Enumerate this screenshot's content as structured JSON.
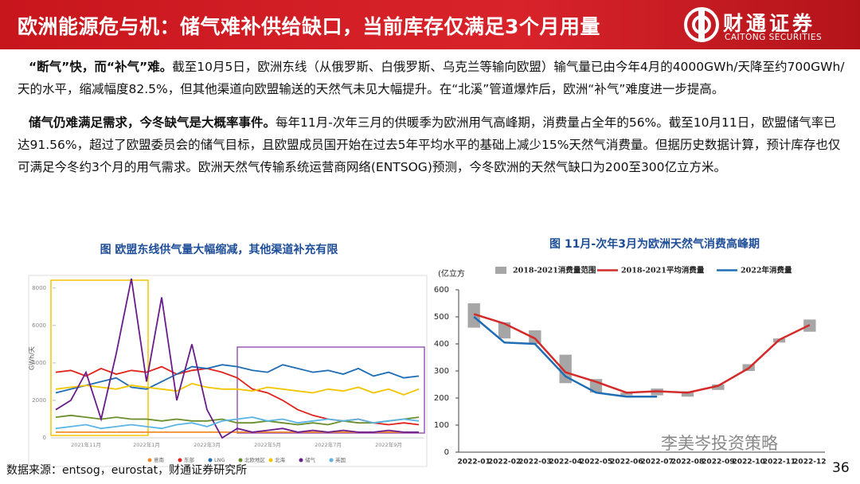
{
  "header": {
    "title": "欧洲能源危与机：储气难补供给缺口，当前库存仅满足3个月用量",
    "logo_cn": "财通证券",
    "logo_en": "CAITONG SECURITIES"
  },
  "paragraphs": [
    {
      "lead": "“断气”快，而“补气”难。",
      "text": "截至10月5日，欧洲东线（从俄罗斯、白俄罗斯、乌克兰等输向欧盟）输气量已由今年4月的4000GWh/天降至约700GWh/天的水平，缩减幅度82.5%，但其他渠道向欧盟输送的天然气未见大幅提升。在“北溪”管道爆炸后，欧洲“补气”难度进一步提高。"
    },
    {
      "lead": "储气仍难满足需求，今冬缺气是大概率事件。",
      "text": "每年11月-次年三月的供暖季为欧洲用气高峰期，消费量占全年的56%。截至10月11日，欧盟储气率已达91.56%，超过了欧盟委员会的储气目标，且欧盟成员国开始在过去5年平均水平的基础上减少15%天然气消费量。但据历史数据计算，预计库存也仅可满足今冬约3个月的用气需求。欧洲天然气传输系统运营商网络(ENTSOG)预测，今冬欧洲的天然气缺口为200至300亿立方米。"
    }
  ],
  "chart_data": [
    {
      "type": "line",
      "title": "图 欧盟东线供气量大幅缩减，其他渠道补充有限",
      "ylabel": "GWh/天",
      "categories": [
        null,
        null,
        "2021年11月",
        null,
        null,
        null,
        "2022年1月",
        null,
        null,
        null,
        "2022年3月",
        null,
        null,
        null,
        "2022年5月",
        null,
        null,
        null,
        "2022年7月",
        null,
        null,
        null,
        "2022年9月",
        null,
        null
      ],
      "ylim": [
        0,
        8500
      ],
      "yticks": [
        0,
        2000,
        4000,
        6000,
        8000
      ],
      "series": [
        {
          "name": "意南",
          "color": "#f28c28",
          "values": [
            300,
            300,
            300,
            300,
            300,
            300,
            300,
            300,
            300,
            300,
            300,
            300,
            300,
            300,
            300,
            300,
            300,
            300,
            300,
            300,
            300,
            300,
            300,
            300,
            300
          ]
        },
        {
          "name": "东部",
          "color": "#e0241b",
          "values": [
            3500,
            3600,
            3300,
            3700,
            3400,
            3600,
            3500,
            3800,
            3400,
            3600,
            3700,
            3500,
            3200,
            2600,
            2400,
            2000,
            1500,
            1200,
            1000,
            900,
            1000,
            800,
            700,
            800,
            700
          ]
        },
        {
          "name": "LNG",
          "color": "#1f6db5",
          "values": [
            2400,
            2600,
            2800,
            3000,
            3200,
            2700,
            2600,
            3000,
            3400,
            3800,
            3700,
            3900,
            3800,
            3600,
            3500,
            3900,
            3700,
            3500,
            3600,
            3400,
            3700,
            3300,
            3500,
            3200,
            3300
          ]
        },
        {
          "name": "北欧地区",
          "color": "#6a8f2a",
          "values": [
            1100,
            1200,
            1100,
            1000,
            1100,
            1000,
            1000,
            900,
            1000,
            900,
            900,
            1000,
            800,
            800,
            900,
            800,
            700,
            800,
            700,
            900,
            800,
            800,
            900,
            1000,
            1100
          ]
        },
        {
          "name": "北海",
          "color": "#f2c500",
          "values": [
            2600,
            2700,
            2800,
            2700,
            2600,
            2800,
            2700,
            2600,
            2500,
            2900,
            2700,
            2600,
            2600,
            2500,
            2700,
            2600,
            2500,
            2400,
            2600,
            2500,
            2700,
            2400,
            2600,
            2300,
            2600
          ]
        },
        {
          "name": "储气",
          "color": "#6a1b8a",
          "values": [
            1500,
            2000,
            3500,
            1000,
            4500,
            8500,
            3000,
            7500,
            2000,
            5000,
            1500,
            0,
            500,
            300,
            400,
            500,
            300,
            400,
            300,
            400,
            300,
            300,
            400,
            300,
            300
          ]
        },
        {
          "name": "英国",
          "color": "#5ab4e6",
          "values": [
            500,
            600,
            700,
            500,
            600,
            700,
            600,
            500,
            700,
            800,
            600,
            900,
            1000,
            1100,
            900,
            1000,
            800,
            900,
            1000,
            900,
            1000,
            800,
            900,
            1000,
            900
          ]
        }
      ]
    },
    {
      "type": "line",
      "title": "图 11月-次年3月为欧洲天然气消费高峰期",
      "ylabel": "(亿立方",
      "categories": [
        "2022-01",
        "2022-02",
        "2022-03",
        "2022-04",
        "2022-05",
        "2022-06",
        "2022-07",
        "2022-08",
        "2022-09",
        "2022-10",
        "2022-11",
        "2022-12"
      ],
      "ylim": [
        0,
        600
      ],
      "yticks": [
        0,
        100,
        200,
        300,
        400,
        500,
        600
      ],
      "series": [
        {
          "name": "2018-2021消费量范围",
          "color": "#a6a6a6",
          "type": "range",
          "low": [
            460,
            420,
            400,
            255,
            220,
            210,
            210,
            205,
            230,
            300,
            405,
            445
          ],
          "high": [
            550,
            480,
            450,
            360,
            270,
            220,
            235,
            225,
            250,
            325,
            420,
            490
          ]
        },
        {
          "name": "2018-2021平均消费量",
          "color": "#d42a2a",
          "values": [
            510,
            475,
            420,
            295,
            260,
            220,
            225,
            220,
            245,
            310,
            415,
            470
          ]
        },
        {
          "name": "2022年消费量",
          "color": "#1f6db5",
          "values": [
            500,
            405,
            400,
            280,
            220,
            205,
            205,
            null,
            null,
            null,
            null,
            null
          ]
        }
      ]
    }
  ],
  "source": "数据来源：entsog，eurostat，财通证券研究所",
  "page_number": "36",
  "watermark": "李美岑投资策略"
}
